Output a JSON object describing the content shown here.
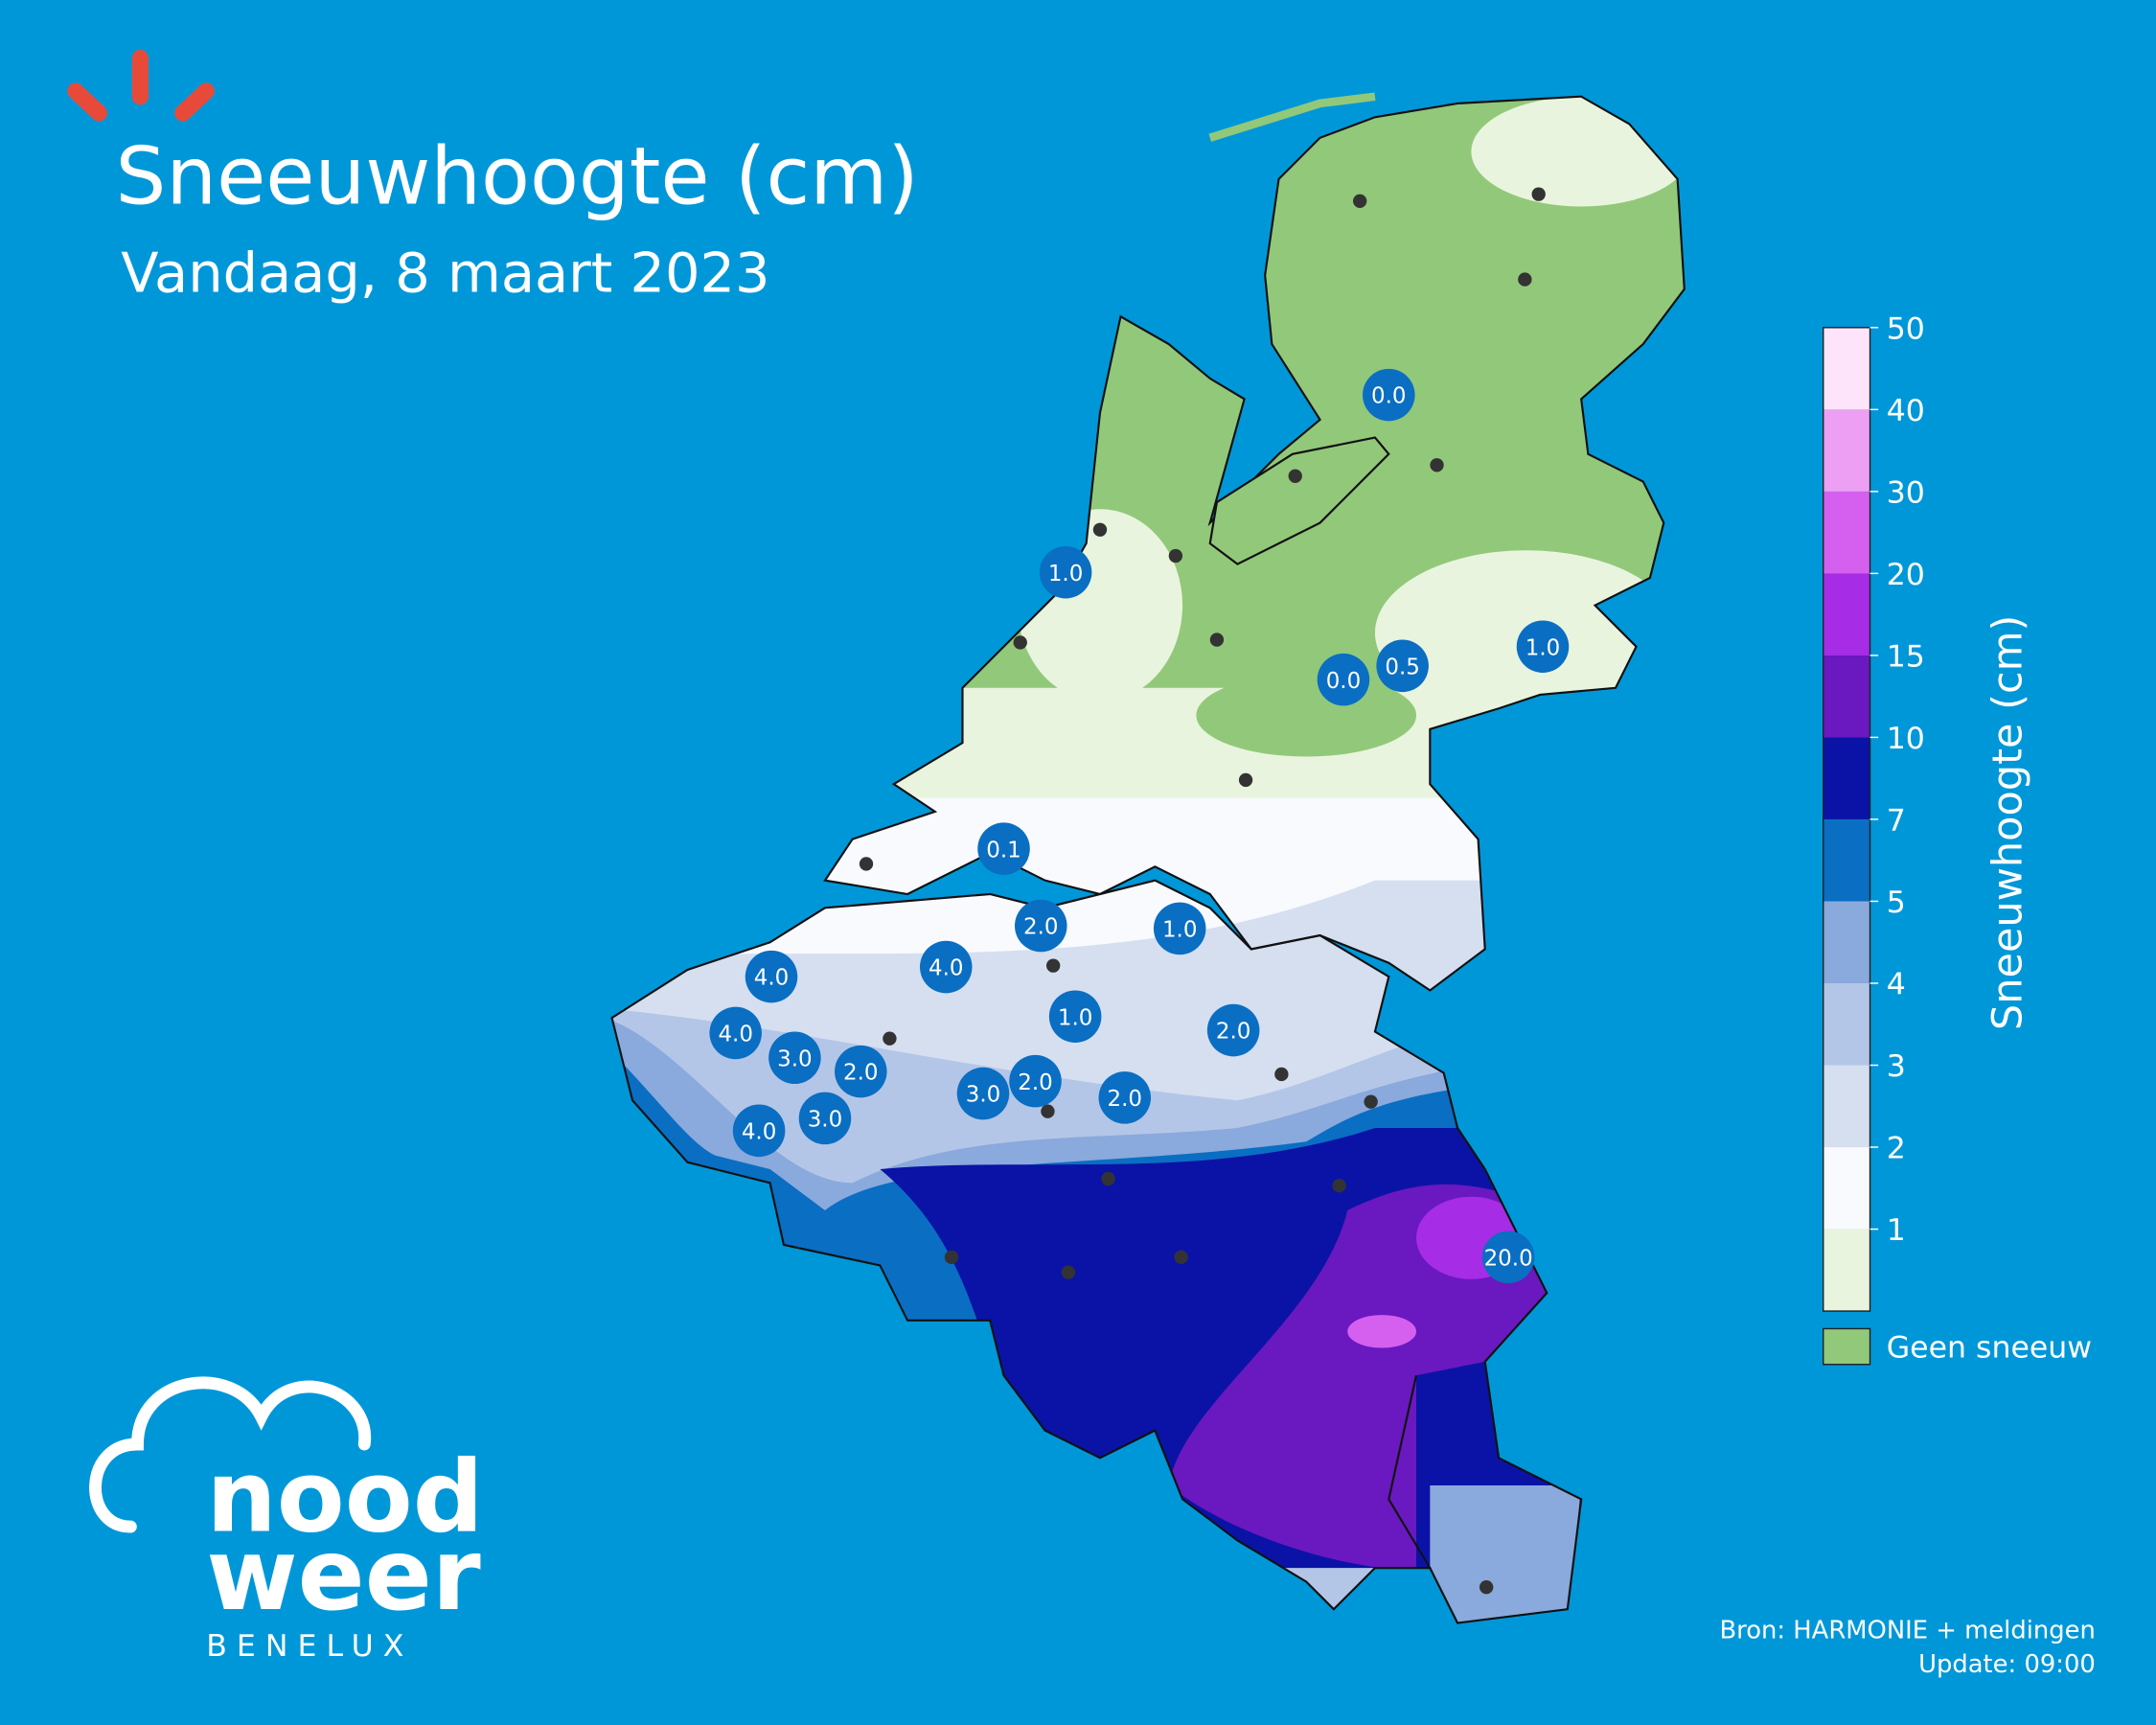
{
  "title": "Sneeuwhoogte (cm)",
  "subtitle": "Vandaag, 8 maart 2023",
  "logo": {
    "line1": "nood",
    "line2": "weer",
    "line3": "BENELUX"
  },
  "colorbar": {
    "label": "Sneeuwhoogte (cm)",
    "ticks": [
      1,
      2,
      3,
      4,
      5,
      7,
      10,
      15,
      20,
      30,
      40,
      50
    ],
    "colors": [
      "#e9f4de",
      "#f8fafd",
      "#d5dff0",
      "#b4c6e7",
      "#8aa9dc",
      "#0a6ec3",
      "#0a13a6",
      "#6a18c0",
      "#a62ce6",
      "#d560ef",
      "#eda0f3",
      "#fde4fb"
    ],
    "no_snow_label": "Geen sneeuw",
    "no_snow_color": "#92c87a"
  },
  "reports": [
    {
      "value": 0,
      "label": "0.0"
    },
    {
      "value": 1,
      "label": "1.0"
    },
    {
      "value": 1,
      "label": "1.0"
    },
    {
      "value": 0.5,
      "label": "0.5"
    },
    {
      "value": 0,
      "label": "0.0"
    },
    {
      "value": 0.1,
      "label": "0.1"
    },
    {
      "value": 2,
      "label": "2.0"
    },
    {
      "value": 1,
      "label": "1.0"
    },
    {
      "value": 4,
      "label": "4.0"
    },
    {
      "value": 4,
      "label": "4.0"
    },
    {
      "value": 1,
      "label": "1.0"
    },
    {
      "value": 2,
      "label": "2.0"
    },
    {
      "value": 4,
      "label": "4.0"
    },
    {
      "value": 3,
      "label": "3.0"
    },
    {
      "value": 2,
      "label": "2.0"
    },
    {
      "value": 3,
      "label": "3.0"
    },
    {
      "value": 2,
      "label": "2.0"
    },
    {
      "value": 2,
      "label": "2.0"
    },
    {
      "value": 4,
      "label": "4.0"
    },
    {
      "value": 3,
      "label": "3.0"
    },
    {
      "value": 20,
      "label": "20.0"
    }
  ],
  "source": "Bron: HARMONIE + meldingen",
  "update": "Update: 09:00"
}
